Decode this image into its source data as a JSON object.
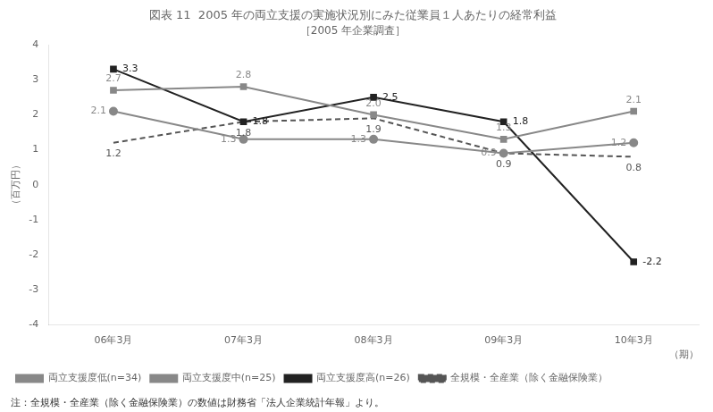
{
  "chart_data": {
    "type": "line",
    "title": "図表 11  2005 年の両立支援の実施状況別にみた従業員１人あたりの経常利益",
    "subtitle": "［2005 年企業調査］",
    "ylabel": "（百万円）",
    "xlabel": "（期）",
    "annotations": [
      "注：全規模・全産業（除く金融保険業）の数値は財務省「法人企業統計年報」より。"
    ],
    "categories": [
      "06年3月",
      "07年3月",
      "08年3月",
      "09年3月",
      "10年3月"
    ],
    "series": [
      {
        "name": "両立支援度低(n=34)",
        "color": "#888888",
        "marker": "circle",
        "line_style": "solid",
        "values": [
          2.1,
          1.3,
          1.3,
          0.9,
          1.2
        ]
      },
      {
        "name": "両立支援度中(n=25)",
        "color": "#888888",
        "marker": "square",
        "line_style": "solid",
        "values": [
          2.7,
          2.8,
          2.0,
          1.3,
          2.1
        ],
        "value_labels": [
          "2.7",
          "2.8",
          "2.0",
          "1.3",
          "2.1"
        ]
      },
      {
        "name": "両立支援度高(n=26)",
        "color": "#222222",
        "marker": "square",
        "line_style": "solid",
        "values": [
          3.3,
          1.8,
          2.5,
          1.8,
          -2.2
        ]
      },
      {
        "name": "全規模・全産業（除く金融保険業）",
        "color": "#555555",
        "marker": "none",
        "line_style": "dashed",
        "values": [
          1.2,
          1.8,
          1.9,
          0.9,
          0.8
        ]
      }
    ],
    "ylim": [
      -4,
      4
    ],
    "yticks": [
      -4,
      -3,
      -2,
      -1,
      0,
      1,
      2,
      3,
      4
    ],
    "grid": false,
    "legend": "bottom",
    "data_labels": true
  }
}
